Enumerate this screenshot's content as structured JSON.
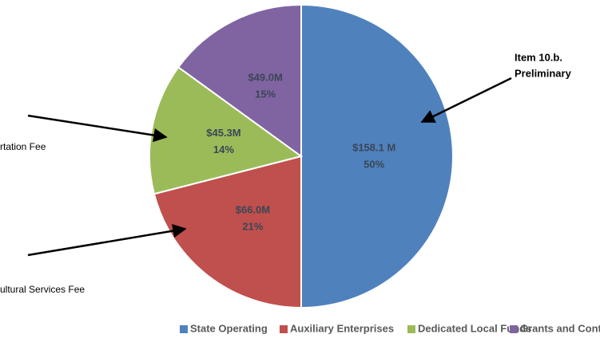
{
  "chart_data": {
    "type": "pie",
    "categories": [
      "State Operating",
      "Auxiliary Enterprises",
      "Dedicated Local Funds",
      "Grants and Contracts"
    ],
    "values": [
      50,
      21,
      14,
      15
    ],
    "value_labels": [
      "50%",
      "21%",
      "14%",
      "15%"
    ],
    "amounts": [
      158.1,
      66.0,
      45.3,
      49.0
    ],
    "amount_labels": [
      "$158.1 M",
      "$66.0M",
      "$45.3M",
      "$49.0M"
    ],
    "colors": [
      "#4f81bd",
      "#c0504d",
      "#9bbb59",
      "#8064a2"
    ],
    "annotations": [
      "Item 10.b.",
      "Preliminary",
      "rtation Fee",
      "ultural Services Fee"
    ],
    "legend": "bottom"
  }
}
